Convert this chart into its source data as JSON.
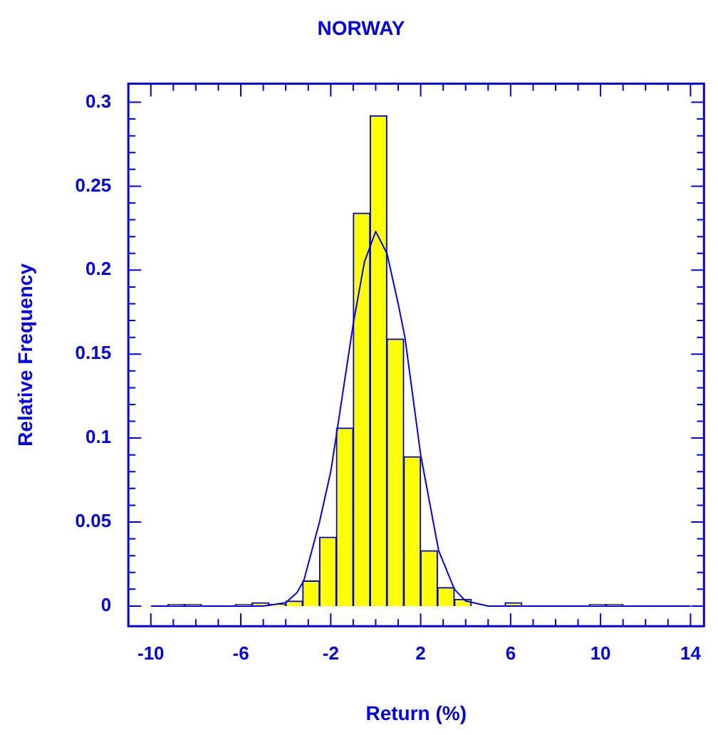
{
  "chart_data": {
    "type": "histogram",
    "title": "NORWAY",
    "xlabel": "Return (%)",
    "ylabel": "Relative Frequency",
    "bins": [
      -10,
      -9.25,
      -8.5,
      -7.75,
      -7,
      -6.25,
      -5.5,
      -4.75,
      -4,
      -3.25,
      -2.5,
      -1.75,
      -1,
      -0.25,
      0.5,
      1.25,
      2,
      2.75,
      3.5,
      4.25,
      5,
      5.75,
      6.5,
      7.25,
      8,
      8.75,
      9.5,
      10.25,
      11,
      11.75,
      12.5,
      13.25,
      14
    ],
    "series": [
      {
        "type": "histogram",
        "color": "#ffff00",
        "values": [
          0,
          0.001,
          0.001,
          0,
          0,
          0.001,
          0.002,
          0.001,
          0.003,
          0.015,
          0.041,
          0.106,
          0.234,
          0.292,
          0.159,
          0.089,
          0.033,
          0.011,
          0.004,
          0,
          0,
          0.002,
          0,
          0,
          0,
          0,
          0.001,
          0.001,
          0,
          0,
          0,
          0
        ]
      },
      {
        "type": "line",
        "color": "#0000ff",
        "x": [
          -10,
          -5,
          -4,
          -3.5,
          -3.2,
          -2.5,
          -2,
          -1.7,
          -1,
          -0.5,
          0,
          0.5,
          1,
          1.3,
          2,
          2.8,
          3.5,
          4,
          5,
          14
        ],
        "values": [
          0,
          0,
          0.002,
          0.008,
          0.015,
          0.05,
          0.08,
          0.106,
          0.168,
          0.205,
          0.223,
          0.21,
          0.18,
          0.16,
          0.09,
          0.033,
          0.01,
          0.003,
          0,
          0
        ]
      }
    ],
    "xlim": [
      -11,
      14.6
    ],
    "ylim": [
      -0.012,
      0.311
    ],
    "xticks": [
      {
        "value": -11,
        "label": null
      },
      -10,
      {
        "value": -9,
        "label": null
      },
      {
        "value": -8,
        "label": null
      },
      {
        "value": -7,
        "label": null
      },
      -6,
      {
        "value": -5,
        "label": null
      },
      {
        "value": -4,
        "label": null
      },
      {
        "value": -3,
        "label": null
      },
      -2,
      {
        "value": -1,
        "label": null
      },
      {
        "value": 0,
        "label": null
      },
      {
        "value": 1,
        "label": null
      },
      2,
      {
        "value": 3,
        "label": null
      },
      {
        "value": 4,
        "label": null
      },
      {
        "value": 5,
        "label": null
      },
      6,
      {
        "value": 7,
        "label": null
      },
      {
        "value": 8,
        "label": null
      },
      {
        "value": 9,
        "label": null
      },
      10,
      {
        "value": 11,
        "label": null
      },
      {
        "value": 12,
        "label": null
      },
      {
        "value": 13,
        "label": null
      },
      14
    ],
    "yticks": [
      0,
      {
        "value": 0.01,
        "label": null
      },
      {
        "value": 0.02,
        "label": null
      },
      {
        "value": 0.03,
        "label": null
      },
      {
        "value": 0.04,
        "label": null
      },
      0.05,
      {
        "value": 0.06,
        "label": null
      },
      {
        "value": 0.07,
        "label": null
      },
      {
        "value": 0.08,
        "label": null
      },
      {
        "value": 0.09,
        "label": null
      },
      0.1,
      {
        "value": 0.11,
        "label": null
      },
      {
        "value": 0.12,
        "label": null
      },
      {
        "value": 0.13,
        "label": null
      },
      {
        "value": 0.14,
        "label": null
      },
      0.15,
      {
        "value": 0.16,
        "label": null
      },
      {
        "value": 0.17,
        "label": null
      },
      {
        "value": 0.18,
        "label": null
      },
      {
        "value": 0.19,
        "label": null
      },
      0.2,
      {
        "value": 0.21,
        "label": null
      },
      {
        "value": 0.22,
        "label": null
      },
      {
        "value": 0.23,
        "label": null
      },
      {
        "value": 0.24,
        "label": null
      },
      0.25,
      {
        "value": 0.26,
        "label": null
      },
      {
        "value": 0.27,
        "label": null
      },
      {
        "value": 0.28,
        "label": null
      },
      {
        "value": 0.29,
        "label": null
      },
      0.3
    ],
    "grid": false,
    "legend": false
  }
}
